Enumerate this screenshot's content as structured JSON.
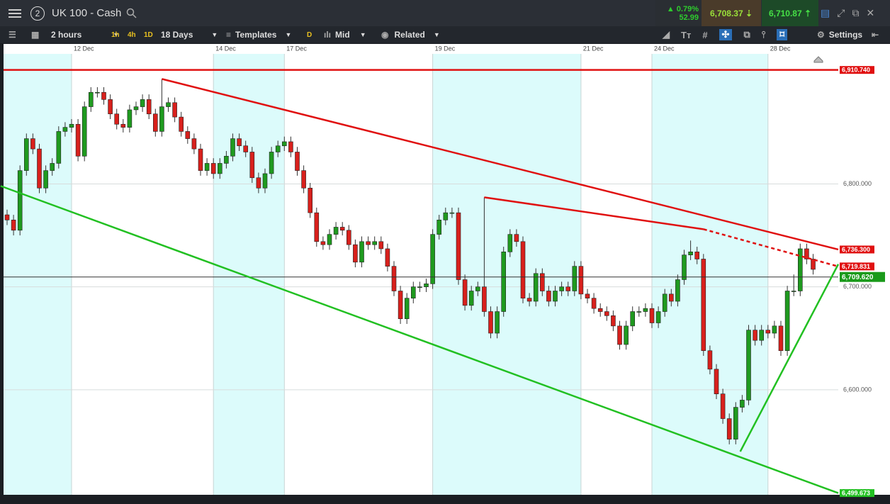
{
  "header": {
    "badge": "2",
    "instrument": "UK 100 - Cash",
    "change_pct": "0.79%",
    "change_pts": "52.99",
    "sell": "6,708.37",
    "buy": "6,710.87"
  },
  "toolbar": {
    "interval": "2 hours",
    "quick": [
      "1h",
      "4h",
      "1D"
    ],
    "range": "18 Days",
    "templates": "Templates",
    "d": "D",
    "price": "Mid",
    "related": "Related",
    "settings": "Settings"
  },
  "chart_data": {
    "type": "candlestick",
    "colors": {
      "up": "#1f9a1f",
      "down": "#d8201c"
    },
    "ylim": [
      6498,
      6936
    ],
    "yticks": [
      {
        "value": 6800,
        "label": "6,800.000"
      },
      {
        "value": 6700,
        "label": "6,700.000"
      },
      {
        "value": 6600,
        "label": "6,600.000"
      }
    ],
    "dates": [
      {
        "index": 10,
        "label": "12 Dec"
      },
      {
        "index": 32,
        "label": "14 Dec"
      },
      {
        "index": 43,
        "label": "17 Dec"
      },
      {
        "index": 66,
        "label": "19 Dec"
      },
      {
        "index": 89,
        "label": "21 Dec"
      },
      {
        "index": 100,
        "label": "24 Dec"
      },
      {
        "index": 118,
        "label": "28 Dec"
      }
    ],
    "candles": [
      [
        6770,
        6775,
        6760,
        6765
      ],
      [
        6765,
        6770,
        6750,
        6755
      ],
      [
        6755,
        6818,
        6750,
        6813
      ],
      [
        6813,
        6849,
        6808,
        6844
      ],
      [
        6844,
        6849,
        6829,
        6834
      ],
      [
        6834,
        6839,
        6791,
        6796
      ],
      [
        6796,
        6818,
        6791,
        6813
      ],
      [
        6813,
        6825,
        6808,
        6820
      ],
      [
        6820,
        6856,
        6815,
        6851
      ],
      [
        6851,
        6860,
        6846,
        6855
      ],
      [
        6855,
        6863,
        6850,
        6858
      ],
      [
        6858,
        6863,
        6822,
        6827
      ],
      [
        6827,
        6880,
        6822,
        6875
      ],
      [
        6875,
        6894,
        6870,
        6889
      ],
      [
        6889,
        6894,
        6884,
        6889
      ],
      [
        6889,
        6894,
        6877,
        6882
      ],
      [
        6882,
        6887,
        6863,
        6868
      ],
      [
        6868,
        6873,
        6853,
        6858
      ],
      [
        6858,
        6863,
        6850,
        6855
      ],
      [
        6855,
        6877,
        6850,
        6872
      ],
      [
        6872,
        6880,
        6867,
        6875
      ],
      [
        6875,
        6887,
        6870,
        6882
      ],
      [
        6882,
        6887,
        6863,
        6868
      ],
      [
        6868,
        6873,
        6846,
        6851
      ],
      [
        6851,
        6902,
        6846,
        6875
      ],
      [
        6875,
        6884,
        6870,
        6879
      ],
      [
        6879,
        6884,
        6860,
        6865
      ],
      [
        6865,
        6870,
        6846,
        6851
      ],
      [
        6851,
        6856,
        6839,
        6844
      ],
      [
        6844,
        6849,
        6829,
        6834
      ],
      [
        6834,
        6839,
        6808,
        6813
      ],
      [
        6813,
        6825,
        6808,
        6820
      ],
      [
        6820,
        6825,
        6805,
        6810
      ],
      [
        6810,
        6825,
        6805,
        6820
      ],
      [
        6820,
        6832,
        6815,
        6827
      ],
      [
        6827,
        6849,
        6822,
        6844
      ],
      [
        6844,
        6849,
        6832,
        6837
      ],
      [
        6837,
        6842,
        6826,
        6831
      ],
      [
        6831,
        6836,
        6801,
        6806
      ],
      [
        6806,
        6811,
        6791,
        6796
      ],
      [
        6796,
        6815,
        6791,
        6810
      ],
      [
        6810,
        6836,
        6805,
        6831
      ],
      [
        6831,
        6842,
        6826,
        6837
      ],
      [
        6837,
        6846,
        6832,
        6841
      ],
      [
        6841,
        6846,
        6826,
        6831
      ],
      [
        6831,
        6836,
        6808,
        6813
      ],
      [
        6813,
        6818,
        6791,
        6796
      ],
      [
        6796,
        6801,
        6767,
        6772
      ],
      [
        6772,
        6777,
        6739,
        6744
      ],
      [
        6744,
        6749,
        6736,
        6741
      ],
      [
        6741,
        6756,
        6736,
        6751
      ],
      [
        6751,
        6763,
        6746,
        6758
      ],
      [
        6758,
        6763,
        6750,
        6755
      ],
      [
        6755,
        6760,
        6736,
        6741
      ],
      [
        6741,
        6746,
        6719,
        6724
      ],
      [
        6724,
        6749,
        6719,
        6744
      ],
      [
        6744,
        6749,
        6736,
        6741
      ],
      [
        6741,
        6749,
        6736,
        6744
      ],
      [
        6744,
        6749,
        6732,
        6737
      ],
      [
        6737,
        6742,
        6715,
        6720
      ],
      [
        6720,
        6725,
        6691,
        6696
      ],
      [
        6696,
        6701,
        6664,
        6669
      ],
      [
        6669,
        6694,
        6664,
        6689
      ],
      [
        6689,
        6705,
        6684,
        6700
      ],
      [
        6700,
        6705,
        6695,
        6700
      ],
      [
        6700,
        6708,
        6695,
        6703
      ],
      [
        6703,
        6756,
        6698,
        6751
      ],
      [
        6751,
        6770,
        6746,
        6765
      ],
      [
        6765,
        6777,
        6760,
        6772
      ],
      [
        6772,
        6777,
        6767,
        6772
      ],
      [
        6772,
        6777,
        6702,
        6707
      ],
      [
        6707,
        6712,
        6677,
        6682
      ],
      [
        6682,
        6701,
        6677,
        6696
      ],
      [
        6696,
        6705,
        6691,
        6700
      ],
      [
        6700,
        6787,
        6671,
        6676
      ],
      [
        6676,
        6681,
        6650,
        6655
      ],
      [
        6655,
        6681,
        6650,
        6676
      ],
      [
        6676,
        6739,
        6671,
        6734
      ],
      [
        6734,
        6756,
        6729,
        6751
      ],
      [
        6751,
        6756,
        6739,
        6744
      ],
      [
        6744,
        6749,
        6684,
        6689
      ],
      [
        6689,
        6694,
        6681,
        6686
      ],
      [
        6686,
        6718,
        6681,
        6713
      ],
      [
        6713,
        6718,
        6691,
        6696
      ],
      [
        6696,
        6701,
        6681,
        6686
      ],
      [
        6686,
        6701,
        6681,
        6696
      ],
      [
        6696,
        6705,
        6691,
        6700
      ],
      [
        6700,
        6705,
        6691,
        6696
      ],
      [
        6696,
        6725,
        6691,
        6720
      ],
      [
        6720,
        6725,
        6688,
        6693
      ],
      [
        6693,
        6698,
        6684,
        6689
      ],
      [
        6689,
        6694,
        6674,
        6679
      ],
      [
        6679,
        6684,
        6671,
        6676
      ],
      [
        6676,
        6681,
        6667,
        6672
      ],
      [
        6672,
        6677,
        6657,
        6662
      ],
      [
        6662,
        6667,
        6639,
        6644
      ],
      [
        6644,
        6667,
        6639,
        6662
      ],
      [
        6662,
        6681,
        6657,
        6676
      ],
      [
        6676,
        6681,
        6671,
        6676
      ],
      [
        6676,
        6684,
        6671,
        6679
      ],
      [
        6679,
        6684,
        6660,
        6665
      ],
      [
        6665,
        6681,
        6660,
        6676
      ],
      [
        6676,
        6698,
        6671,
        6693
      ],
      [
        6693,
        6698,
        6681,
        6686
      ],
      [
        6686,
        6712,
        6681,
        6707
      ],
      [
        6707,
        6736,
        6702,
        6731
      ],
      [
        6731,
        6745,
        6726,
        6734
      ],
      [
        6734,
        6739,
        6722,
        6727
      ],
      [
        6727,
        6732,
        6633,
        6638
      ],
      [
        6638,
        6643,
        6615,
        6620
      ],
      [
        6620,
        6625,
        6591,
        6596
      ],
      [
        6596,
        6601,
        6567,
        6572
      ],
      [
        6572,
        6577,
        6547,
        6552
      ],
      [
        6552,
        6588,
        6547,
        6583
      ],
      [
        6583,
        6595,
        6578,
        6590
      ],
      [
        6590,
        6663,
        6585,
        6658
      ],
      [
        6658,
        6663,
        6643,
        6648
      ],
      [
        6648,
        6663,
        6643,
        6658
      ],
      [
        6658,
        6663,
        6650,
        6655
      ],
      [
        6655,
        6667,
        6650,
        6662
      ],
      [
        6662,
        6667,
        6633,
        6638
      ],
      [
        6638,
        6701,
        6633,
        6696
      ],
      [
        6696,
        6712,
        6691,
        6696
      ],
      [
        6696,
        6742,
        6691,
        6737
      ],
      [
        6737,
        6742,
        6722,
        6727
      ],
      [
        6727,
        6732,
        6712,
        6717
      ]
    ],
    "hlines": [
      {
        "value": 6910.74,
        "label": "6,910.740",
        "color": "#e01010"
      },
      {
        "value": 6709.62,
        "label": "6,709.620",
        "color": "#1a9a1a",
        "line": "#333333"
      }
    ],
    "trendlines": [
      {
        "from": [
          24,
          6902
        ],
        "to_value": 6736.3,
        "label": "6,736.300",
        "color": "#e01010"
      },
      {
        "from": [
          74,
          6787
        ],
        "to": [
          108,
          6756
        ],
        "color": "#e01010"
      },
      {
        "from": [
          108,
          6756
        ],
        "to_value": 6719.831,
        "label": "6,719.831",
        "color": "#e01010",
        "dashed": true
      },
      {
        "from": [
          -1,
          6798
        ],
        "to_value": 6499.673,
        "label": "6,499.673",
        "color": "#22c022"
      },
      {
        "from": [
          113.7,
          6540
        ],
        "to_value": 6722,
        "color": "#22c022"
      }
    ]
  }
}
